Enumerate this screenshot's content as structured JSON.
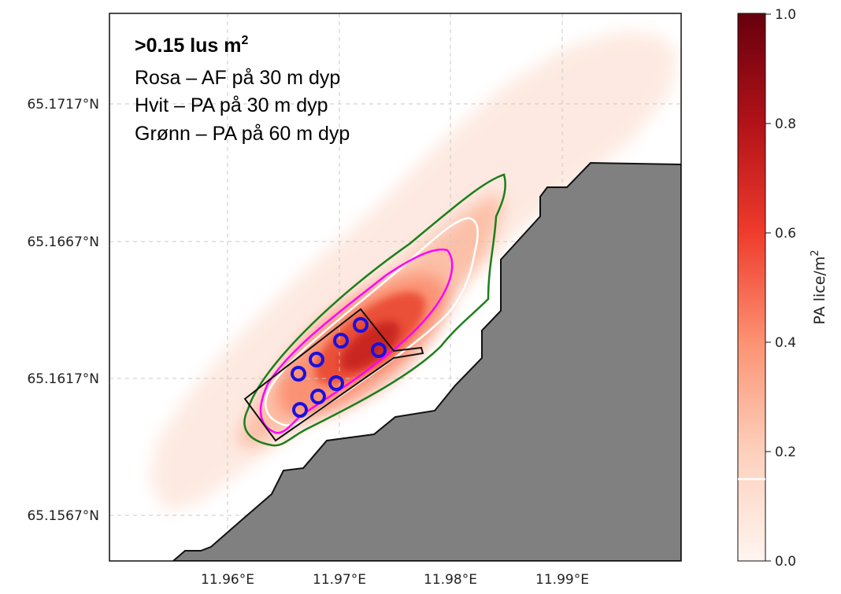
{
  "legend": {
    "title": ">0.15 lus m",
    "title_sup": "2",
    "lines": [
      "Rosa – AF på 30 m dyp",
      "Hvit – PA på 30 m dyp",
      "Grønn – PA på 60 m dyp"
    ]
  },
  "axes": {
    "lat_ticks": [
      "65.1717°N",
      "65.1667°N",
      "65.1617°N",
      "65.1567°N"
    ],
    "lon_ticks": [
      "11.96°E",
      "11.97°E",
      "11.98°E",
      "11.99°E"
    ]
  },
  "colorbar": {
    "label": "PA lice/m",
    "label_sup": "2",
    "ticks": [
      "1.0",
      "0.8",
      "0.6",
      "0.4",
      "0.2",
      "0.0"
    ],
    "range": [
      0.0,
      1.0
    ],
    "threshold": 0.15,
    "colors": [
      "#fff5f0",
      "#fdd0bc",
      "#fc9272",
      "#ef3b2c",
      "#b11218",
      "#67000d"
    ]
  },
  "contour_colors": {
    "af_30m": "#ff00ff",
    "pa_30m": "#ffffff",
    "pa_60m": "#1b7f1b",
    "farm_polygon": "#111111",
    "cages": "#1a10e0",
    "land": "#808080"
  },
  "cages_count": 8
}
